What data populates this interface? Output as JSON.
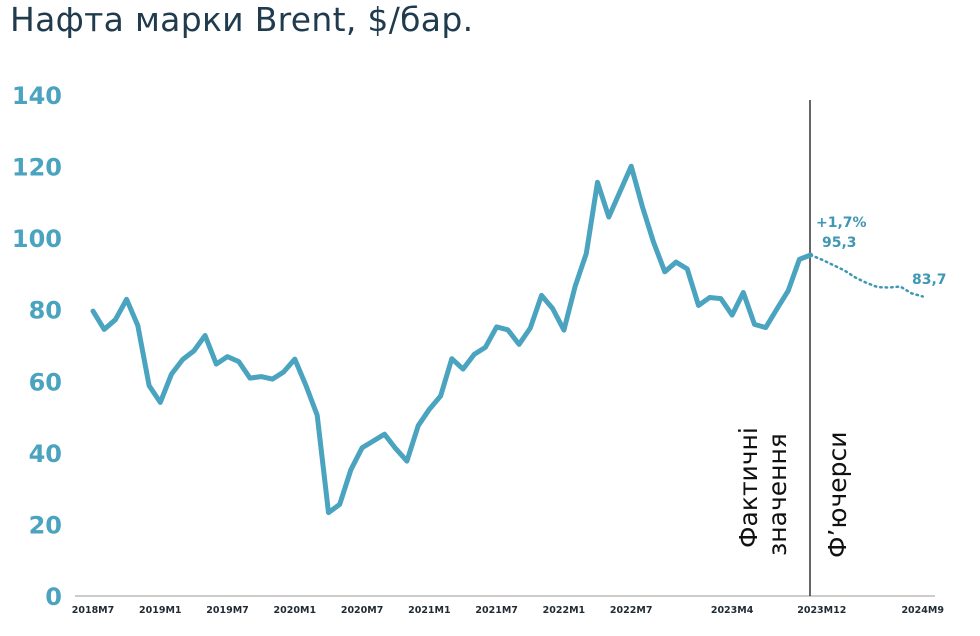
{
  "title": "Нафта марки Brent, $/бар.",
  "colors": {
    "series": "#4aa3bf",
    "forecast": "#3f97b4",
    "title": "#1f3b4d",
    "divider": "#333333"
  },
  "chart_data": {
    "type": "line",
    "title": "Нафта марки Brent, $/бар.",
    "xlabel": "",
    "ylabel": "",
    "ylim": [
      0,
      140
    ],
    "yticks": [
      "0",
      "20",
      "40",
      "60",
      "80",
      "100",
      "120",
      "140"
    ],
    "grid": false,
    "x_tick_labels": [
      "2018M7",
      "2019M1",
      "2019M7",
      "2020M1",
      "2020M7",
      "2021M1",
      "2021M7",
      "2022M1",
      "2022M7",
      "2023M4",
      "2023M12",
      "2024M9"
    ],
    "region_labels": [
      "Фактичні значення",
      "Ф’ючерси"
    ],
    "series": [
      {
        "style": "solid",
        "x": [
          "2018M7",
          "2018M8",
          "2018M9",
          "2018M10",
          "2018M11",
          "2018M12",
          "2019M1",
          "2019M2",
          "2019M3",
          "2019M4",
          "2019M5",
          "2019M6",
          "2019M7",
          "2019M8",
          "2019M9",
          "2019M10",
          "2019M11",
          "2019M12",
          "2020M1",
          "2020M2",
          "2020M3",
          "2020M4",
          "2020M5",
          "2020M6",
          "2020M7",
          "2020M8",
          "2020M9",
          "2020M10",
          "2020M11",
          "2020M12",
          "2021M1",
          "2021M2",
          "2021M3",
          "2021M4",
          "2021M5",
          "2021M6",
          "2021M7",
          "2021M8",
          "2021M9",
          "2021M10",
          "2021M11",
          "2021M12",
          "2022M1",
          "2022M2",
          "2022M3",
          "2022M4",
          "2022M5",
          "2022M6",
          "2022M7",
          "2022M8",
          "2022M9",
          "2022M10",
          "2022M11",
          "2022M12",
          "2023M1",
          "2023M2",
          "2023M3",
          "2023M4",
          "2023M5",
          "2023M6",
          "2023M7",
          "2023M8",
          "2023M9",
          "2023M10",
          "2023M11"
        ],
        "values": [
          79.6,
          74.5,
          77.2,
          82.9,
          75.6,
          58.8,
          54.1,
          62,
          66.1,
          68.5,
          72.8,
          64.8,
          66.9,
          65.5,
          60.9,
          61.3,
          60.6,
          62.6,
          66.2,
          58.8,
          50.5,
          23.3,
          25.6,
          35.3,
          41.4,
          43.3,
          45.2,
          41.2,
          37.7,
          47.6,
          52.2,
          55.9,
          66.3,
          63.4,
          67.5,
          69.5,
          75.2,
          74.4,
          70.3,
          74.9,
          84,
          80.3,
          74.3,
          86.5,
          95.7,
          115.6,
          105.9,
          113,
          120.1,
          108.8,
          98.8,
          90.6,
          93.3,
          91.4,
          81.2,
          83.4,
          83.1,
          78.5,
          84.8,
          75.9,
          75,
          80.2,
          85.3,
          94.1,
          95.3
        ]
      },
      {
        "style": "dotted",
        "x": [
          "2023M11",
          "2023M12",
          "2024M1",
          "2024M2",
          "2024M3",
          "2024M4",
          "2024M5",
          "2024M6",
          "2024M7",
          "2024M8",
          "2024M9"
        ],
        "values": [
          95.3,
          94,
          92.5,
          91,
          89,
          87.5,
          86.3,
          86.2,
          86.5,
          84.6,
          83.7
        ]
      }
    ],
    "annotations": [
      {
        "text": "+1,7%",
        "at_x": "2023M12"
      },
      {
        "text": "95,3",
        "at_x": "2023M12"
      },
      {
        "text": "83,7",
        "at_x": "2024M9"
      }
    ]
  }
}
